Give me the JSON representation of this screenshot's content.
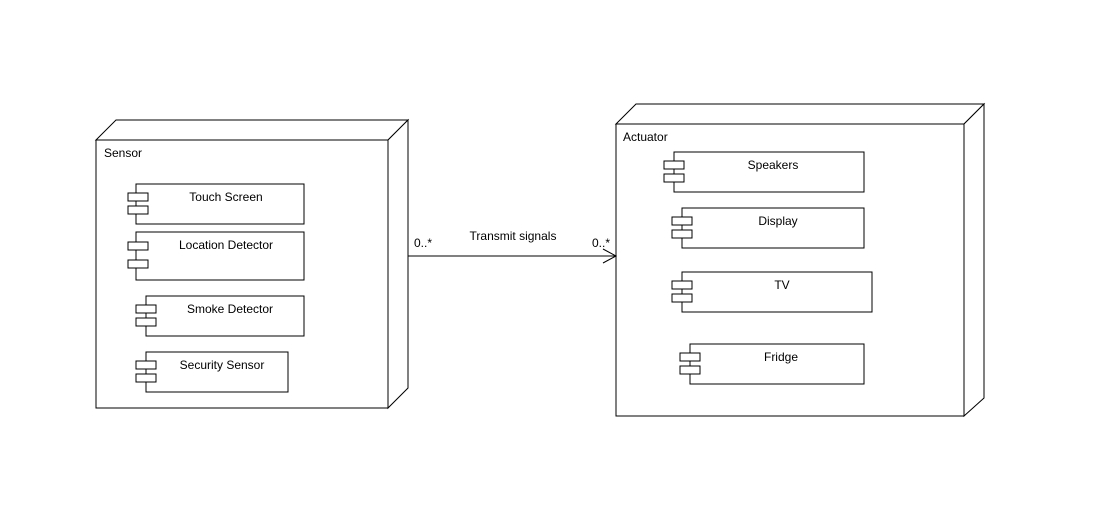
{
  "nodes": {
    "sensor": {
      "label": "Sensor",
      "components": [
        "Touch Screen",
        "Location Detector",
        "Smoke Detector",
        "Security Sensor"
      ]
    },
    "actuator": {
      "label": "Actuator",
      "components": [
        "Speakers",
        "Display",
        "TV",
        "Fridge"
      ]
    }
  },
  "association": {
    "label": "Transmit signals",
    "source_multiplicity": "0..*",
    "target_multiplicity": "0..*"
  }
}
